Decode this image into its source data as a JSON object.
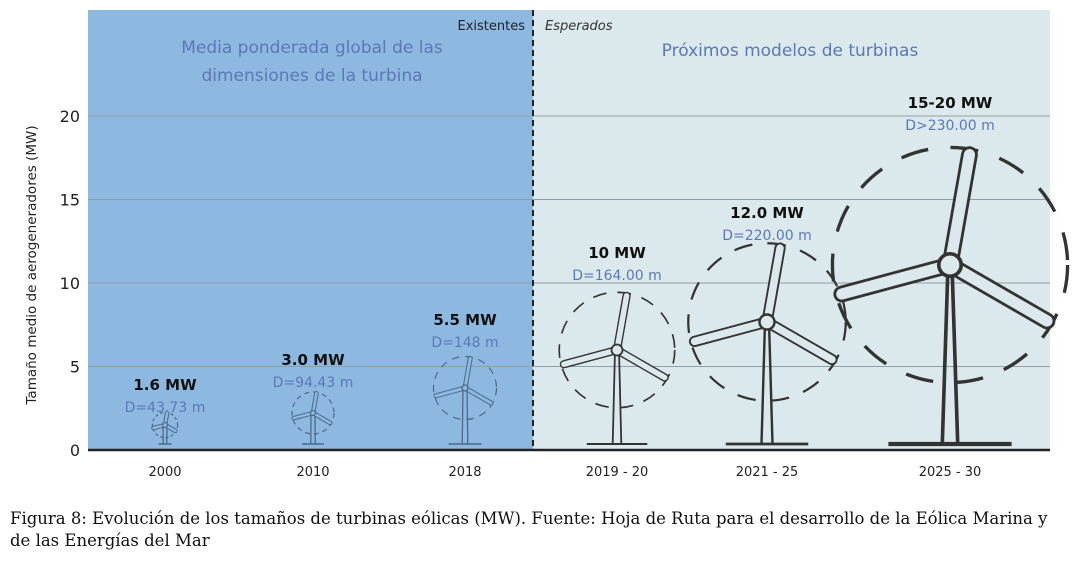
{
  "chart_data": {
    "type": "bar",
    "title": "",
    "ylabel": "Tamaño medio de aerogeneradores (MW)",
    "xlabel": "",
    "ylim": [
      0,
      25
    ],
    "yticks": [
      "0",
      "5",
      "10",
      "15",
      "20"
    ],
    "grid": true,
    "categories": [
      "2000",
      "2010",
      "2018",
      "2019 - 20",
      "2021 - 25",
      "2025 - 30"
    ],
    "values": [
      1.6,
      3.0,
      5.5,
      10,
      12.0,
      17.5
    ],
    "mw_labels": [
      "1.6 MW",
      "3.0 MW",
      "5.5 MW",
      "10 MW",
      "12.0 MW",
      "15-20 MW"
    ],
    "diameter_labels": [
      "D=43.73 m",
      "D=94.43 m",
      "D=148 m",
      "D=164.00 m",
      "D=220.00 m",
      "D>230.00 m"
    ],
    "diameters_m": [
      43.73,
      94.43,
      148,
      164,
      220,
      230
    ],
    "regions": {
      "existing_label": "Existentes",
      "expected_label": "Esperados",
      "existing_title": [
        "Media ponderada global de las",
        "dimensiones de la turbina"
      ],
      "expected_title": "Próximos modelos de turbinas"
    },
    "colors": {
      "existing_bg": "#8db9e1",
      "expected_bg": "#dce9ec",
      "accent_text": "#5b78b6",
      "line": "#333333"
    }
  },
  "caption": "Figura 8: Evolución de los tamaños de turbinas eólicas (MW). Fuente: Hoja de Ruta para el desarrollo de la Eólica Marina y de las Energías del Mar"
}
